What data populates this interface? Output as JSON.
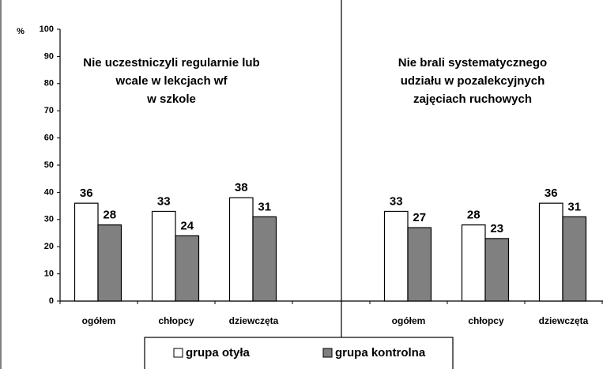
{
  "chart_data": {
    "type": "bar",
    "y_label": "%",
    "annotations": [
      [
        "Nie uczestniczyli regularnie lub",
        "wcale w lekcjach wf",
        "w szkole"
      ],
      [
        "Nie brali systematycznego",
        "udziału w pozalekcyjnych",
        "zajęciach ruchowych"
      ]
    ],
    "categories": [
      "ogółem",
      "chłopcy",
      "dziewczęta",
      null,
      "ogółem",
      "chłopcy",
      "dziewczęta"
    ],
    "series": [
      {
        "name": "grupa otyła",
        "color": "#ffffff",
        "values": [
          36,
          33,
          38,
          null,
          33,
          28,
          36
        ]
      },
      {
        "name": "grupa kontrolna",
        "color": "#808080",
        "values": [
          28,
          24,
          31,
          null,
          27,
          23,
          31
        ]
      }
    ],
    "ylim": [
      0,
      100
    ],
    "yticks": [
      0,
      10,
      20,
      30,
      40,
      50,
      60,
      70,
      80,
      90,
      100
    ],
    "grid": false
  }
}
